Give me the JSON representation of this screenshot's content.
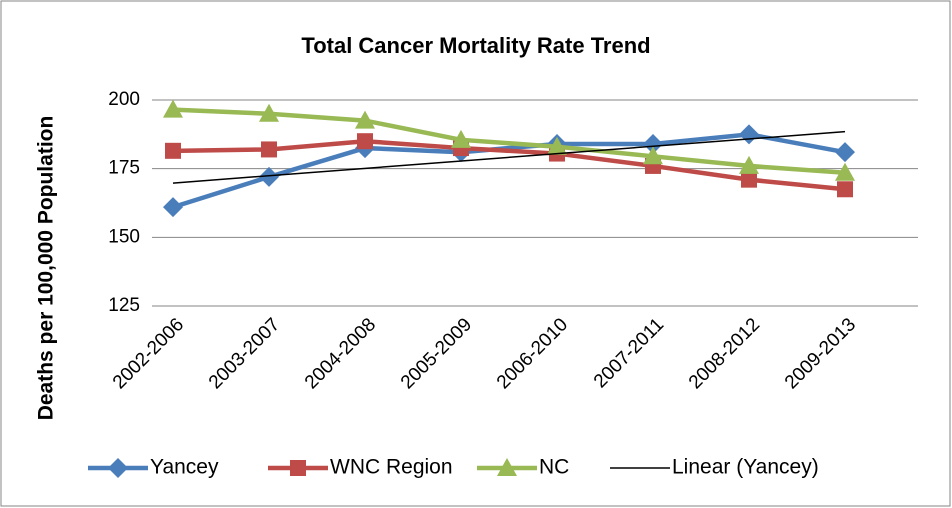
{
  "chart_data": {
    "type": "line",
    "title": "Total Cancer Mortality Rate Trend",
    "y_label": "Deaths per 100,000 Population",
    "categories": [
      "2002-2006",
      "2003-2007",
      "2004-2008",
      "2005-2009",
      "2006-2010",
      "2007-2011",
      "2008-2012",
      "2009-2013"
    ],
    "series": [
      {
        "name": "Yancey",
        "color": "#4a7ebb",
        "marker": "diamond",
        "values": [
          161,
          172,
          182.5,
          181,
          184,
          184,
          187.5,
          181
        ]
      },
      {
        "name": "WNC Region",
        "color": "#be4b48",
        "marker": "square",
        "values": [
          181.5,
          182,
          185,
          182.5,
          180.5,
          176,
          171,
          167.5
        ]
      },
      {
        "name": "NC",
        "color": "#98b954",
        "marker": "triangle",
        "values": [
          196.5,
          195,
          192.5,
          185.5,
          183,
          179.5,
          176,
          173.5
        ]
      }
    ],
    "trendline": {
      "name": "Linear (Yancey)",
      "color": "#000000",
      "source": "Yancey"
    },
    "ylim": [
      125,
      200
    ],
    "yticks": [
      125,
      150,
      175,
      200
    ],
    "grid": true,
    "legend": "bottom"
  }
}
